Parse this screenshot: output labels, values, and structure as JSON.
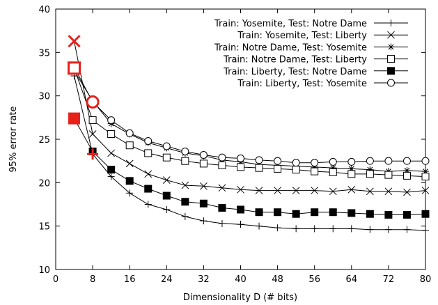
{
  "chart_data": {
    "type": "line",
    "xlabel": "Dimensionality D (# bits)",
    "ylabel": "95% error rate",
    "xlim": [
      0,
      80
    ],
    "ylim": [
      10,
      40
    ],
    "xticks": [
      0,
      8,
      16,
      24,
      32,
      40,
      48,
      56,
      64,
      72,
      80
    ],
    "yticks": [
      10,
      15,
      20,
      25,
      30,
      35,
      40
    ],
    "grid": false,
    "legend": "top-right",
    "x": [
      4,
      8,
      12,
      16,
      20,
      24,
      28,
      32,
      36,
      40,
      44,
      48,
      52,
      56,
      60,
      64,
      68,
      72,
      76,
      80
    ],
    "series": [
      {
        "name": "Train: Yosemite, Test: Notre Dame",
        "marker": "plus",
        "values": [
          32.3,
          23.3,
          20.7,
          18.8,
          17.5,
          16.9,
          16.1,
          15.6,
          15.3,
          15.2,
          15.0,
          14.8,
          14.7,
          14.7,
          14.7,
          14.7,
          14.6,
          14.6,
          14.6,
          14.5
        ]
      },
      {
        "name": "Train: Yosemite, Test: Liberty",
        "marker": "cross",
        "values": [
          36.3,
          25.6,
          23.4,
          22.2,
          21.0,
          20.3,
          19.7,
          19.6,
          19.4,
          19.2,
          19.1,
          19.1,
          19.1,
          19.1,
          19.0,
          19.2,
          19.0,
          19.0,
          18.9,
          19.1
        ]
      },
      {
        "name": "Train: Notre Dame, Test: Yosemite",
        "marker": "star",
        "values": [
          32.9,
          29.4,
          26.8,
          25.6,
          24.6,
          24.0,
          23.4,
          23.1,
          22.6,
          22.4,
          22.1,
          22.0,
          21.9,
          21.8,
          21.7,
          21.6,
          21.5,
          21.3,
          21.4,
          21.3
        ]
      },
      {
        "name": "Train: Notre Dame, Test: Liberty",
        "marker": "open-square",
        "values": [
          33.2,
          27.2,
          25.6,
          24.3,
          23.4,
          22.9,
          22.5,
          22.2,
          22.0,
          21.8,
          21.7,
          21.6,
          21.5,
          21.3,
          21.2,
          21.0,
          21.0,
          20.9,
          20.8,
          20.7
        ]
      },
      {
        "name": "Train: Liberty, Test: Notre Dame",
        "marker": "filled-square",
        "values": [
          27.4,
          23.6,
          21.5,
          20.2,
          19.3,
          18.5,
          17.8,
          17.6,
          17.1,
          16.9,
          16.6,
          16.6,
          16.4,
          16.6,
          16.6,
          16.5,
          16.4,
          16.3,
          16.3,
          16.4
        ]
      },
      {
        "name": "Train: Liberty, Test: Yosemite",
        "marker": "open-circle",
        "values": [
          33.3,
          29.3,
          27.2,
          25.7,
          24.8,
          24.2,
          23.6,
          23.2,
          22.9,
          22.8,
          22.6,
          22.5,
          22.3,
          22.3,
          22.4,
          22.4,
          22.5,
          22.5,
          22.5,
          22.5
        ]
      }
    ],
    "highlight": {
      "color": "#e8201a",
      "note_points": [
        {
          "series": 0,
          "x": 8
        },
        {
          "series": 1,
          "x": 4
        },
        {
          "series": 2,
          "x": 8
        },
        {
          "series": 3,
          "x": 4
        },
        {
          "series": 4,
          "x": 4
        },
        {
          "series": 5,
          "x": 8
        }
      ]
    }
  }
}
